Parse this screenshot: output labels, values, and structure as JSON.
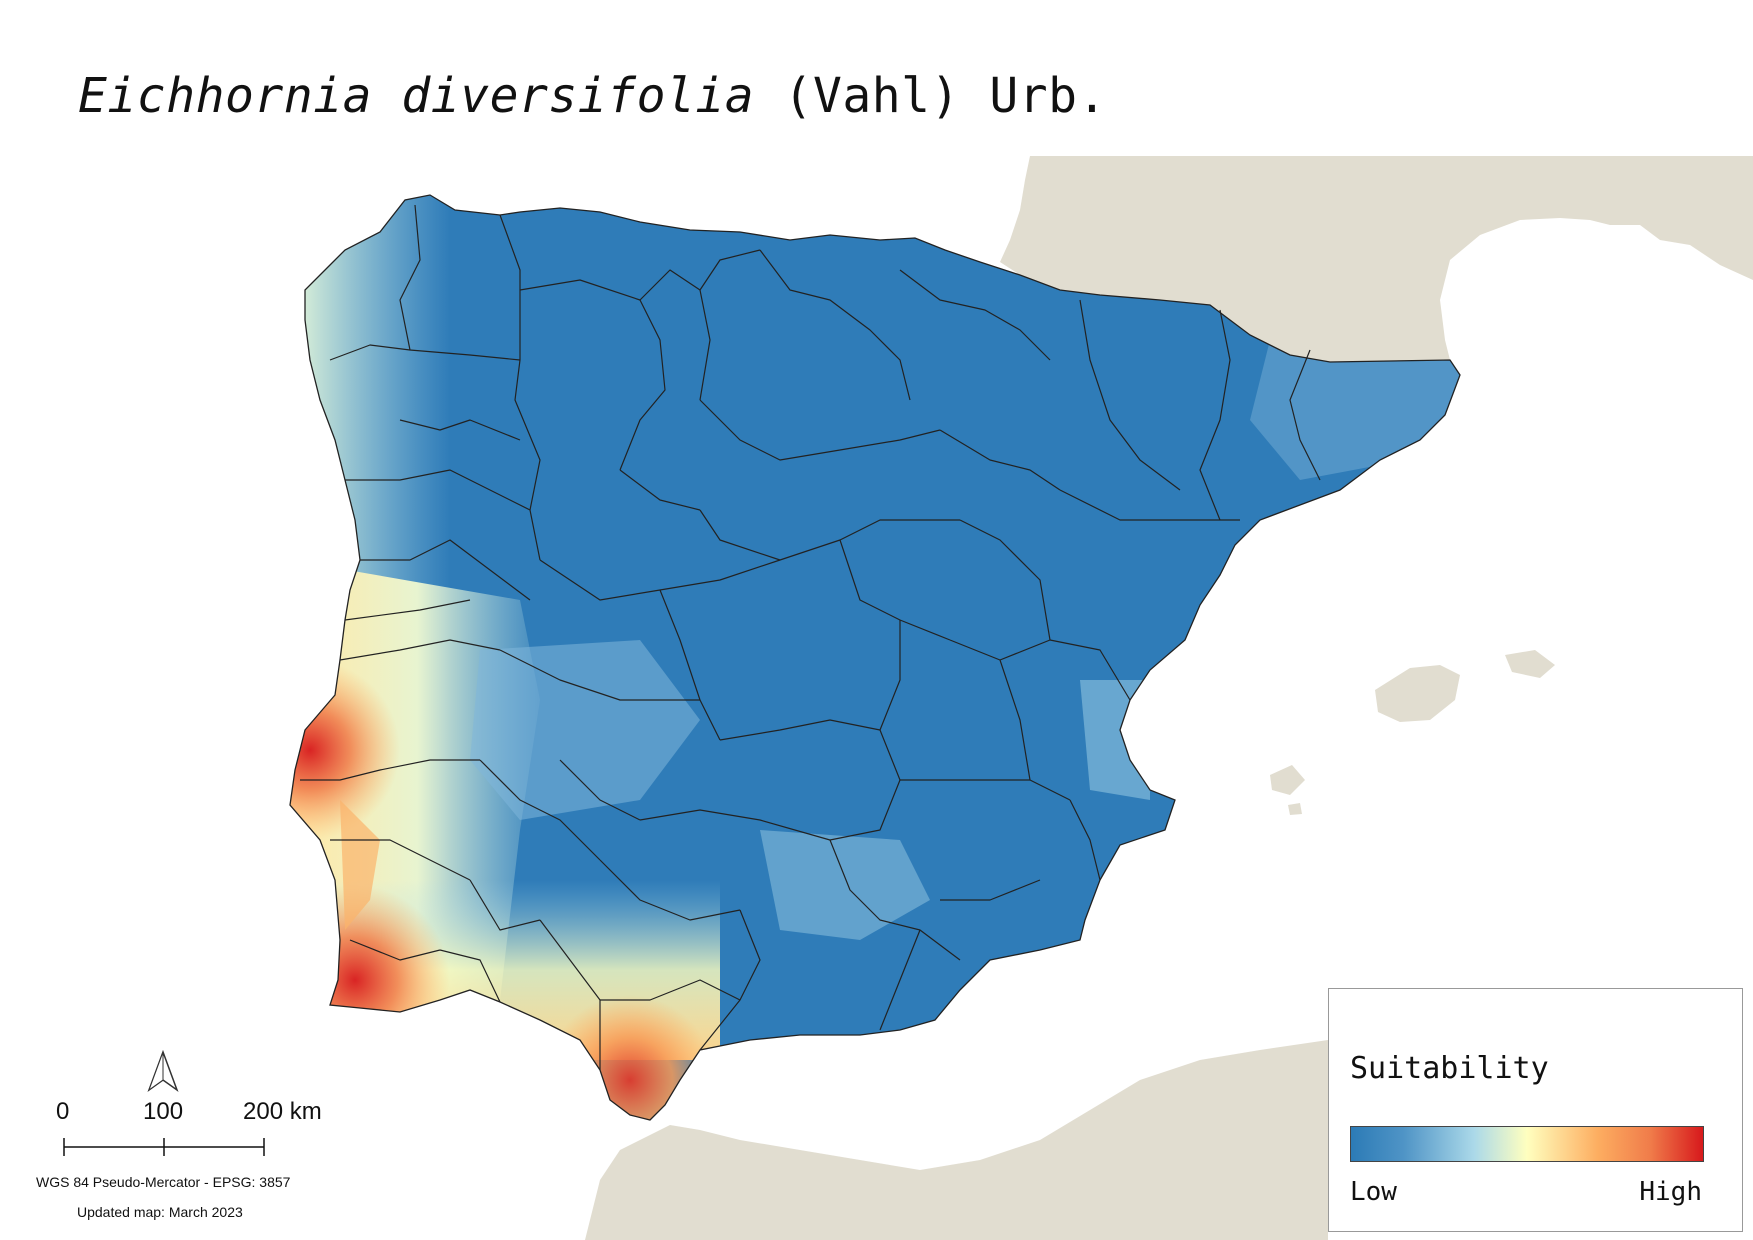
{
  "map": {
    "title_italic": "Eichhornia diversifolia",
    "title_author": " (Vahl) Urb.",
    "colors": {
      "land": "#e1ddd0",
      "sea": "#ffffff",
      "low": "#2c7bb6",
      "mid_low": "#abd9e9",
      "mid": "#ffffbf",
      "mid_high": "#fdae61",
      "high": "#d7191c",
      "borders": "#222222"
    },
    "icons": [
      "north-arrow-icon"
    ]
  },
  "legend": {
    "title": "Suitability",
    "low_label": "Low",
    "high_label": "High"
  },
  "scalebar": {
    "tick0": "0",
    "tick1": "100",
    "tick2": "200 km"
  },
  "footer": {
    "crs": "WGS 84 Pseudo-Mercator  - EPSG: 3857",
    "updated": "Updated map: March 2023"
  }
}
